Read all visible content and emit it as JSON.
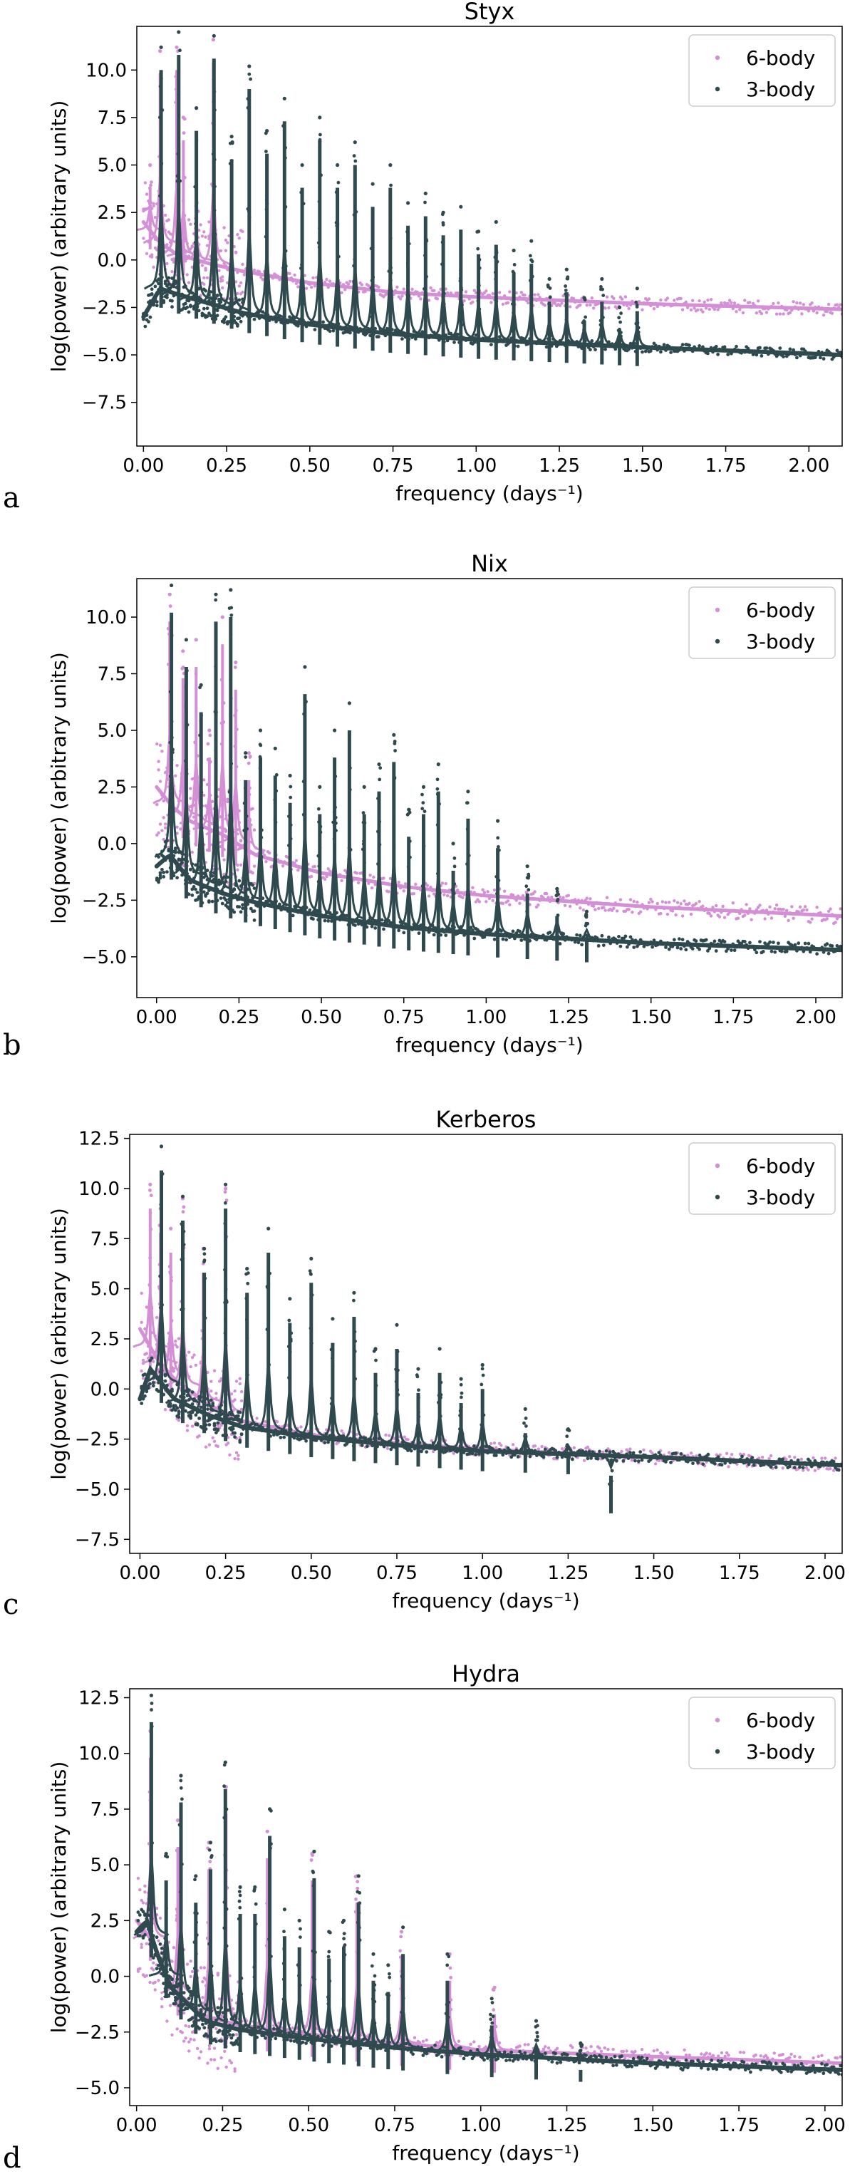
{
  "colors": {
    "six_body": "#d48fd6",
    "three_body": "#2f4a4f",
    "axis": "#000000"
  },
  "chart_data": [
    {
      "type": "scatter",
      "panel_letter": "a",
      "title": "Styx",
      "xlabel": "frequency (days⁻¹)",
      "ylabel": "log(power) (arbitrary units)",
      "xlim": [
        -0.02,
        2.1
      ],
      "ylim": [
        -9.8,
        12.3
      ],
      "xticks": [
        0.0,
        0.25,
        0.5,
        0.75,
        1.0,
        1.25,
        1.5,
        1.75,
        2.0
      ],
      "xtick_labels": [
        "0.00",
        "0.25",
        "0.50",
        "0.75",
        "1.00",
        "1.25",
        "1.50",
        "1.75",
        "2.00"
      ],
      "yticks": [
        -7.5,
        -5.0,
        -2.5,
        0.0,
        2.5,
        5.0,
        7.5,
        10.0
      ],
      "ytick_labels": [
        "−7.5",
        "−5.0",
        "−2.5",
        "0.0",
        "2.5",
        "5.0",
        "7.5",
        "10.0"
      ],
      "legend_position": "top-right",
      "series": [
        {
          "name": "6-body",
          "baseline": [
            [
              0.0,
              2.0
            ],
            [
              0.05,
              0.9
            ],
            [
              0.1,
              0.3
            ],
            [
              0.2,
              -0.2
            ],
            [
              0.3,
              -0.6
            ],
            [
              0.5,
              -1.2
            ],
            [
              0.75,
              -1.7
            ],
            [
              1.0,
              -1.95
            ],
            [
              1.5,
              -2.3
            ],
            [
              2.1,
              -2.6
            ]
          ],
          "peaks": [
            [
              0.05,
              11.0
            ],
            [
              0.1,
              11.2
            ],
            [
              0.21,
              11.6
            ],
            [
              0.12,
              7.5
            ],
            [
              0.02,
              5.0
            ],
            [
              0.16,
              3.0
            ]
          ]
        },
        {
          "name": "3-body",
          "baseline": [
            [
              0.0,
              -3.0
            ],
            [
              0.05,
              -1.5
            ],
            [
              0.1,
              -1.8
            ],
            [
              0.2,
              -2.3
            ],
            [
              0.3,
              -2.8
            ],
            [
              0.5,
              -3.4
            ],
            [
              0.75,
              -3.9
            ],
            [
              1.0,
              -4.2
            ],
            [
              1.5,
              -4.6
            ],
            [
              2.1,
              -5.0
            ]
          ],
          "peaks": [
            [
              0.053,
              11.2
            ],
            [
              0.106,
              12.0
            ],
            [
              0.212,
              11.8
            ],
            [
              0.159,
              8.0
            ],
            [
              0.265,
              6.5
            ],
            [
              0.318,
              10.2
            ],
            [
              0.371,
              6.8
            ],
            [
              0.424,
              8.5
            ],
            [
              0.477,
              5.0
            ],
            [
              0.53,
              7.5
            ],
            [
              0.583,
              5.0
            ],
            [
              0.636,
              6.2
            ],
            [
              0.689,
              4.0
            ],
            [
              0.742,
              5.0
            ],
            [
              0.795,
              3.0
            ],
            [
              0.848,
              3.5
            ],
            [
              0.901,
              2.5
            ],
            [
              0.954,
              2.8
            ],
            [
              1.007,
              1.5
            ],
            [
              1.06,
              2.0
            ],
            [
              1.113,
              0.5
            ],
            [
              1.166,
              1.0
            ],
            [
              1.22,
              -1.0
            ],
            [
              1.272,
              -0.5
            ],
            [
              1.325,
              -2.0
            ],
            [
              1.378,
              -1.0
            ],
            [
              1.431,
              -2.5
            ],
            [
              1.484,
              -1.5
            ]
          ]
        }
      ]
    },
    {
      "type": "scatter",
      "panel_letter": "b",
      "title": "Nix",
      "xlabel": "frequency (days⁻¹)",
      "ylabel": "log(power) (arbitrary units)",
      "xlim": [
        -0.06,
        2.08
      ],
      "ylim": [
        -6.8,
        11.7
      ],
      "xticks": [
        0.0,
        0.25,
        0.5,
        0.75,
        1.0,
        1.25,
        1.5,
        1.75,
        2.0
      ],
      "xtick_labels": [
        "0.00",
        "0.25",
        "0.50",
        "0.75",
        "1.00",
        "1.25",
        "1.50",
        "1.75",
        "2.00"
      ],
      "yticks": [
        -5.0,
        -2.5,
        0.0,
        2.5,
        5.0,
        7.5,
        10.0
      ],
      "ytick_labels": [
        "−5.0",
        "−2.5",
        "0.0",
        "2.5",
        "5.0",
        "7.5",
        "10.0"
      ],
      "legend_position": "top-right",
      "series": [
        {
          "name": "6-body",
          "baseline": [
            [
              0.0,
              2.5
            ],
            [
              0.05,
              1.6
            ],
            [
              0.1,
              1.0
            ],
            [
              0.2,
              0.4
            ],
            [
              0.3,
              -0.5
            ],
            [
              0.5,
              -1.3
            ],
            [
              0.75,
              -1.9
            ],
            [
              1.0,
              -2.3
            ],
            [
              1.5,
              -2.8
            ],
            [
              2.08,
              -3.2
            ]
          ],
          "peaks": [
            [
              0.04,
              11.0
            ],
            [
              0.08,
              8.5
            ],
            [
              0.12,
              9.0
            ],
            [
              0.16,
              5.0
            ],
            [
              0.2,
              10.0
            ],
            [
              0.24,
              8.0
            ],
            [
              0.28,
              4.0
            ]
          ]
        },
        {
          "name": "3-body",
          "baseline": [
            [
              0.0,
              -1.0
            ],
            [
              0.04,
              -0.5
            ],
            [
              0.1,
              -1.6
            ],
            [
              0.2,
              -2.2
            ],
            [
              0.3,
              -2.6
            ],
            [
              0.5,
              -3.2
            ],
            [
              0.75,
              -3.7
            ],
            [
              1.0,
              -4.0
            ],
            [
              1.5,
              -4.4
            ],
            [
              2.08,
              -4.7
            ]
          ],
          "peaks": [
            [
              0.045,
              11.4
            ],
            [
              0.09,
              9.0
            ],
            [
              0.135,
              7.0
            ],
            [
              0.18,
              11.0
            ],
            [
              0.225,
              11.2
            ],
            [
              0.27,
              4.0
            ],
            [
              0.315,
              5.0
            ],
            [
              0.36,
              4.2
            ],
            [
              0.405,
              3.0
            ],
            [
              0.45,
              7.8
            ],
            [
              0.495,
              2.5
            ],
            [
              0.54,
              5.0
            ],
            [
              0.585,
              6.2
            ],
            [
              0.63,
              2.5
            ],
            [
              0.675,
              3.5
            ],
            [
              0.72,
              4.8
            ],
            [
              0.765,
              1.5
            ],
            [
              0.81,
              2.5
            ],
            [
              0.855,
              3.5
            ],
            [
              0.9,
              0.0
            ],
            [
              0.945,
              2.3
            ],
            [
              1.035,
              1.0
            ],
            [
              1.125,
              -1.0
            ],
            [
              1.215,
              -2.0
            ],
            [
              1.305,
              -3.0
            ]
          ]
        }
      ]
    },
    {
      "type": "scatter",
      "panel_letter": "c",
      "title": "Kerberos",
      "xlabel": "frequency (days⁻¹)",
      "ylabel": "log(power) (arbitrary units)",
      "xlim": [
        -0.03,
        2.05
      ],
      "ylim": [
        -8.2,
        12.7
      ],
      "xticks": [
        0.0,
        0.25,
        0.5,
        0.75,
        1.0,
        1.25,
        1.5,
        1.75,
        2.0
      ],
      "xtick_labels": [
        "0.00",
        "0.25",
        "0.50",
        "0.75",
        "1.00",
        "1.25",
        "1.50",
        "1.75",
        "2.00"
      ],
      "yticks": [
        -7.5,
        -5.0,
        -2.5,
        0.0,
        2.5,
        5.0,
        7.5,
        10.0,
        12.5
      ],
      "ytick_labels": [
        "−7.5",
        "−5.0",
        "−2.5",
        "0.0",
        "2.5",
        "5.0",
        "7.5",
        "10.0",
        "12.5"
      ],
      "legend_position": "top-right",
      "series": [
        {
          "name": "6-body",
          "baseline": [
            [
              0.0,
              3.0
            ],
            [
              0.05,
              1.5
            ],
            [
              0.1,
              0.5
            ],
            [
              0.2,
              -0.8
            ],
            [
              0.3,
              -1.6
            ],
            [
              0.5,
              -2.3
            ],
            [
              0.75,
              -2.7
            ],
            [
              1.0,
              -3.0
            ],
            [
              1.5,
              -3.4
            ],
            [
              2.05,
              -3.8
            ]
          ],
          "peaks": [
            [
              0.03,
              10.2
            ],
            [
              0.06,
              9.0
            ],
            [
              0.09,
              8.0
            ],
            [
              0.125,
              9.5
            ],
            [
              0.185,
              7.0
            ],
            [
              0.25,
              10.0
            ]
          ]
        },
        {
          "name": "3-body",
          "baseline": [
            [
              0.0,
              -0.5
            ],
            [
              0.03,
              1.0
            ],
            [
              0.1,
              -0.5
            ],
            [
              0.2,
              -1.3
            ],
            [
              0.3,
              -1.9
            ],
            [
              0.5,
              -2.4
            ],
            [
              0.75,
              -2.8
            ],
            [
              1.0,
              -3.1
            ],
            [
              1.5,
              -3.4
            ],
            [
              2.05,
              -3.8
            ]
          ],
          "peaks": [
            [
              0.0625,
              12.1
            ],
            [
              0.125,
              9.6
            ],
            [
              0.1875,
              7.0
            ],
            [
              0.25,
              10.2
            ],
            [
              0.3125,
              6.0
            ],
            [
              0.375,
              8.0
            ],
            [
              0.4375,
              4.5
            ],
            [
              0.5,
              6.5
            ],
            [
              0.5625,
              3.5
            ],
            [
              0.625,
              4.8
            ],
            [
              0.6875,
              2.0
            ],
            [
              0.75,
              3.2
            ],
            [
              0.8125,
              1.0
            ],
            [
              0.875,
              2.0
            ],
            [
              0.9375,
              0.5
            ],
            [
              1.0,
              1.2
            ],
            [
              1.125,
              -1.0
            ],
            [
              1.25,
              -2.0
            ],
            [
              1.375,
              -5.0
            ]
          ]
        }
      ]
    },
    {
      "type": "scatter",
      "panel_letter": "d",
      "title": "Hydra",
      "xlabel": "frequency (days⁻¹)",
      "ylabel": "log(power) (arbitrary units)",
      "xlim": [
        -0.02,
        2.05
      ],
      "ylim": [
        -5.8,
        12.9
      ],
      "xticks": [
        0.0,
        0.25,
        0.5,
        0.75,
        1.0,
        1.25,
        1.5,
        1.75,
        2.0
      ],
      "xtick_labels": [
        "0.00",
        "0.25",
        "0.50",
        "0.75",
        "1.00",
        "1.25",
        "1.50",
        "1.75",
        "2.00"
      ],
      "yticks": [
        -5.0,
        -2.5,
        0.0,
        2.5,
        5.0,
        7.5,
        10.0,
        12.5
      ],
      "ytick_labels": [
        "−5.0",
        "−2.5",
        "0.0",
        "2.5",
        "5.0",
        "7.5",
        "10.0",
        "12.5"
      ],
      "legend_position": "top-right",
      "series": [
        {
          "name": "6-body",
          "baseline": [
            [
              0.0,
              2.5
            ],
            [
              0.05,
              1.5
            ],
            [
              0.1,
              -0.5
            ],
            [
              0.2,
              -1.8
            ],
            [
              0.3,
              -2.2
            ],
            [
              0.5,
              -2.6
            ],
            [
              0.75,
              -3.0
            ],
            [
              1.0,
              -3.3
            ],
            [
              1.5,
              -3.6
            ],
            [
              2.05,
              -3.9
            ]
          ],
          "peaks": [
            [
              0.04,
              11.0
            ],
            [
              0.12,
              7.0
            ],
            [
              0.21,
              6.0
            ],
            [
              0.26,
              8.5
            ],
            [
              0.38,
              6.5
            ],
            [
              0.51,
              5.5
            ],
            [
              0.64,
              4.5
            ],
            [
              0.77,
              2.0
            ],
            [
              0.91,
              1.0
            ],
            [
              1.04,
              -0.5
            ]
          ]
        },
        {
          "name": "3-body",
          "baseline": [
            [
              0.0,
              2.0
            ],
            [
              0.03,
              2.5
            ],
            [
              0.06,
              1.0
            ],
            [
              0.1,
              -0.5
            ],
            [
              0.2,
              -2.0
            ],
            [
              0.3,
              -2.4
            ],
            [
              0.5,
              -2.8
            ],
            [
              0.75,
              -3.2
            ],
            [
              1.0,
              -3.5
            ],
            [
              1.5,
              -3.9
            ],
            [
              2.05,
              -4.2
            ]
          ],
          "peaks": [
            [
              0.043,
              12.6
            ],
            [
              0.086,
              5.5
            ],
            [
              0.129,
              9.0
            ],
            [
              0.172,
              4.5
            ],
            [
              0.215,
              6.0
            ],
            [
              0.258,
              9.6
            ],
            [
              0.301,
              4.0
            ],
            [
              0.344,
              4.0
            ],
            [
              0.387,
              7.5
            ],
            [
              0.43,
              3.0
            ],
            [
              0.473,
              2.5
            ],
            [
              0.516,
              5.6
            ],
            [
              0.559,
              2.0
            ],
            [
              0.602,
              2.5
            ],
            [
              0.645,
              4.5
            ],
            [
              0.688,
              1.0
            ],
            [
              0.731,
              0.5
            ],
            [
              0.774,
              2.2
            ],
            [
              0.903,
              1.0
            ],
            [
              1.032,
              -1.0
            ],
            [
              1.161,
              -2.0
            ],
            [
              1.29,
              -3.0
            ]
          ]
        }
      ]
    }
  ]
}
